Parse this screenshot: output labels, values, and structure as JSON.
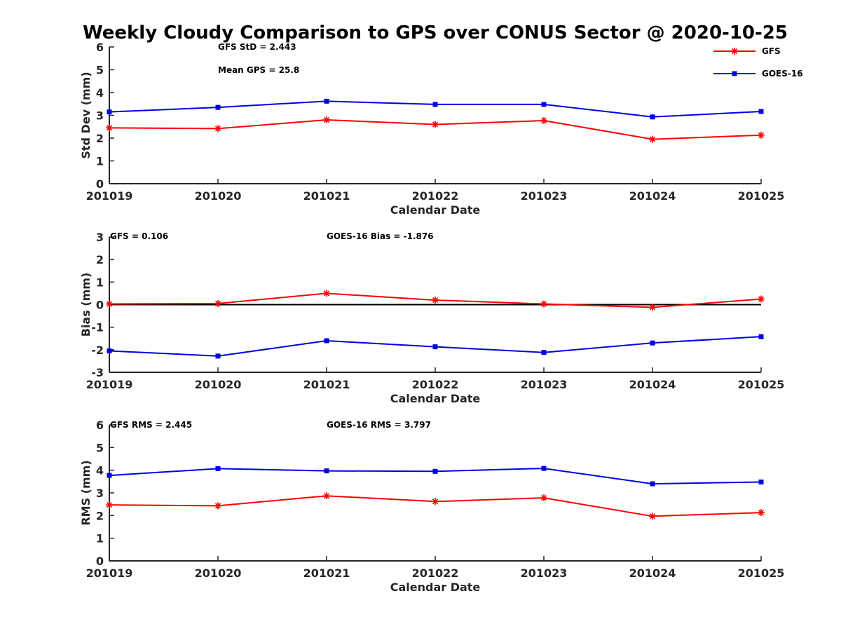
{
  "title": "Weekly Cloudy Comparison to GPS over CONUS Sector @ 2020-10-25",
  "colors": {
    "gfs": "#ff0000",
    "goes16": "#0000e6",
    "zero_line": "#000000",
    "axis": "#262626"
  },
  "legend": {
    "items": [
      {
        "label": "GFS",
        "color": "#ff0000",
        "marker": "asterisk"
      },
      {
        "label": "GOES-16",
        "color": "#0000e6",
        "marker": "square"
      }
    ]
  },
  "chart_data": [
    {
      "type": "line",
      "xlabel": "Calendar Date",
      "ylabel": "Std Dev (mm)",
      "categories": [
        "201019",
        "201020",
        "201021",
        "201022",
        "201023",
        "201024",
        "201025"
      ],
      "ylim": [
        0,
        6
      ],
      "yticks": [
        0,
        1,
        2,
        3,
        4,
        5,
        6
      ],
      "annotations": [
        "GFS StD = 2.443",
        "Mean GPS = 25.8"
      ],
      "series": [
        {
          "name": "GFS",
          "color": "#ff0000",
          "marker": "asterisk",
          "values": [
            2.45,
            2.42,
            2.8,
            2.6,
            2.77,
            1.95,
            2.13
          ]
        },
        {
          "name": "GOES-16",
          "color": "#0000e6",
          "marker": "square",
          "values": [
            3.15,
            3.35,
            3.62,
            3.48,
            3.48,
            2.93,
            3.17
          ]
        }
      ],
      "grid": false
    },
    {
      "type": "line",
      "xlabel": "Calendar Date",
      "ylabel": "Bias (mm)",
      "categories": [
        "201019",
        "201020",
        "201021",
        "201022",
        "201023",
        "201024",
        "201025"
      ],
      "ylim": [
        -3,
        3
      ],
      "yticks": [
        -3,
        -2,
        -1,
        0,
        1,
        2,
        3
      ],
      "zero_line": true,
      "annotations": [
        "GFS = 0.106",
        "GOES-16 Bias  = -1.876"
      ],
      "series": [
        {
          "name": "GFS",
          "color": "#ff0000",
          "marker": "asterisk",
          "values": [
            0.03,
            0.05,
            0.5,
            0.2,
            0.03,
            -0.12,
            0.25
          ]
        },
        {
          "name": "GOES-16",
          "color": "#0000e6",
          "marker": "square",
          "values": [
            -2.05,
            -2.28,
            -1.6,
            -1.87,
            -2.12,
            -1.7,
            -1.42
          ]
        }
      ],
      "grid": false
    },
    {
      "type": "line",
      "xlabel": "Calendar Date",
      "ylabel": "RMS (mm)",
      "categories": [
        "201019",
        "201020",
        "201021",
        "201022",
        "201023",
        "201024",
        "201025"
      ],
      "ylim": [
        0,
        6
      ],
      "yticks": [
        0,
        1,
        2,
        3,
        4,
        5,
        6
      ],
      "annotations": [
        "GFS RMS = 2.445",
        "GOES-16 RMS = 3.797"
      ],
      "series": [
        {
          "name": "GFS",
          "color": "#ff0000",
          "marker": "asterisk",
          "values": [
            2.47,
            2.43,
            2.87,
            2.62,
            2.78,
            1.97,
            2.13
          ]
        },
        {
          "name": "GOES-16",
          "color": "#0000e6",
          "marker": "square",
          "values": [
            3.77,
            4.07,
            3.97,
            3.95,
            4.08,
            3.4,
            3.48
          ]
        }
      ],
      "grid": false
    }
  ]
}
